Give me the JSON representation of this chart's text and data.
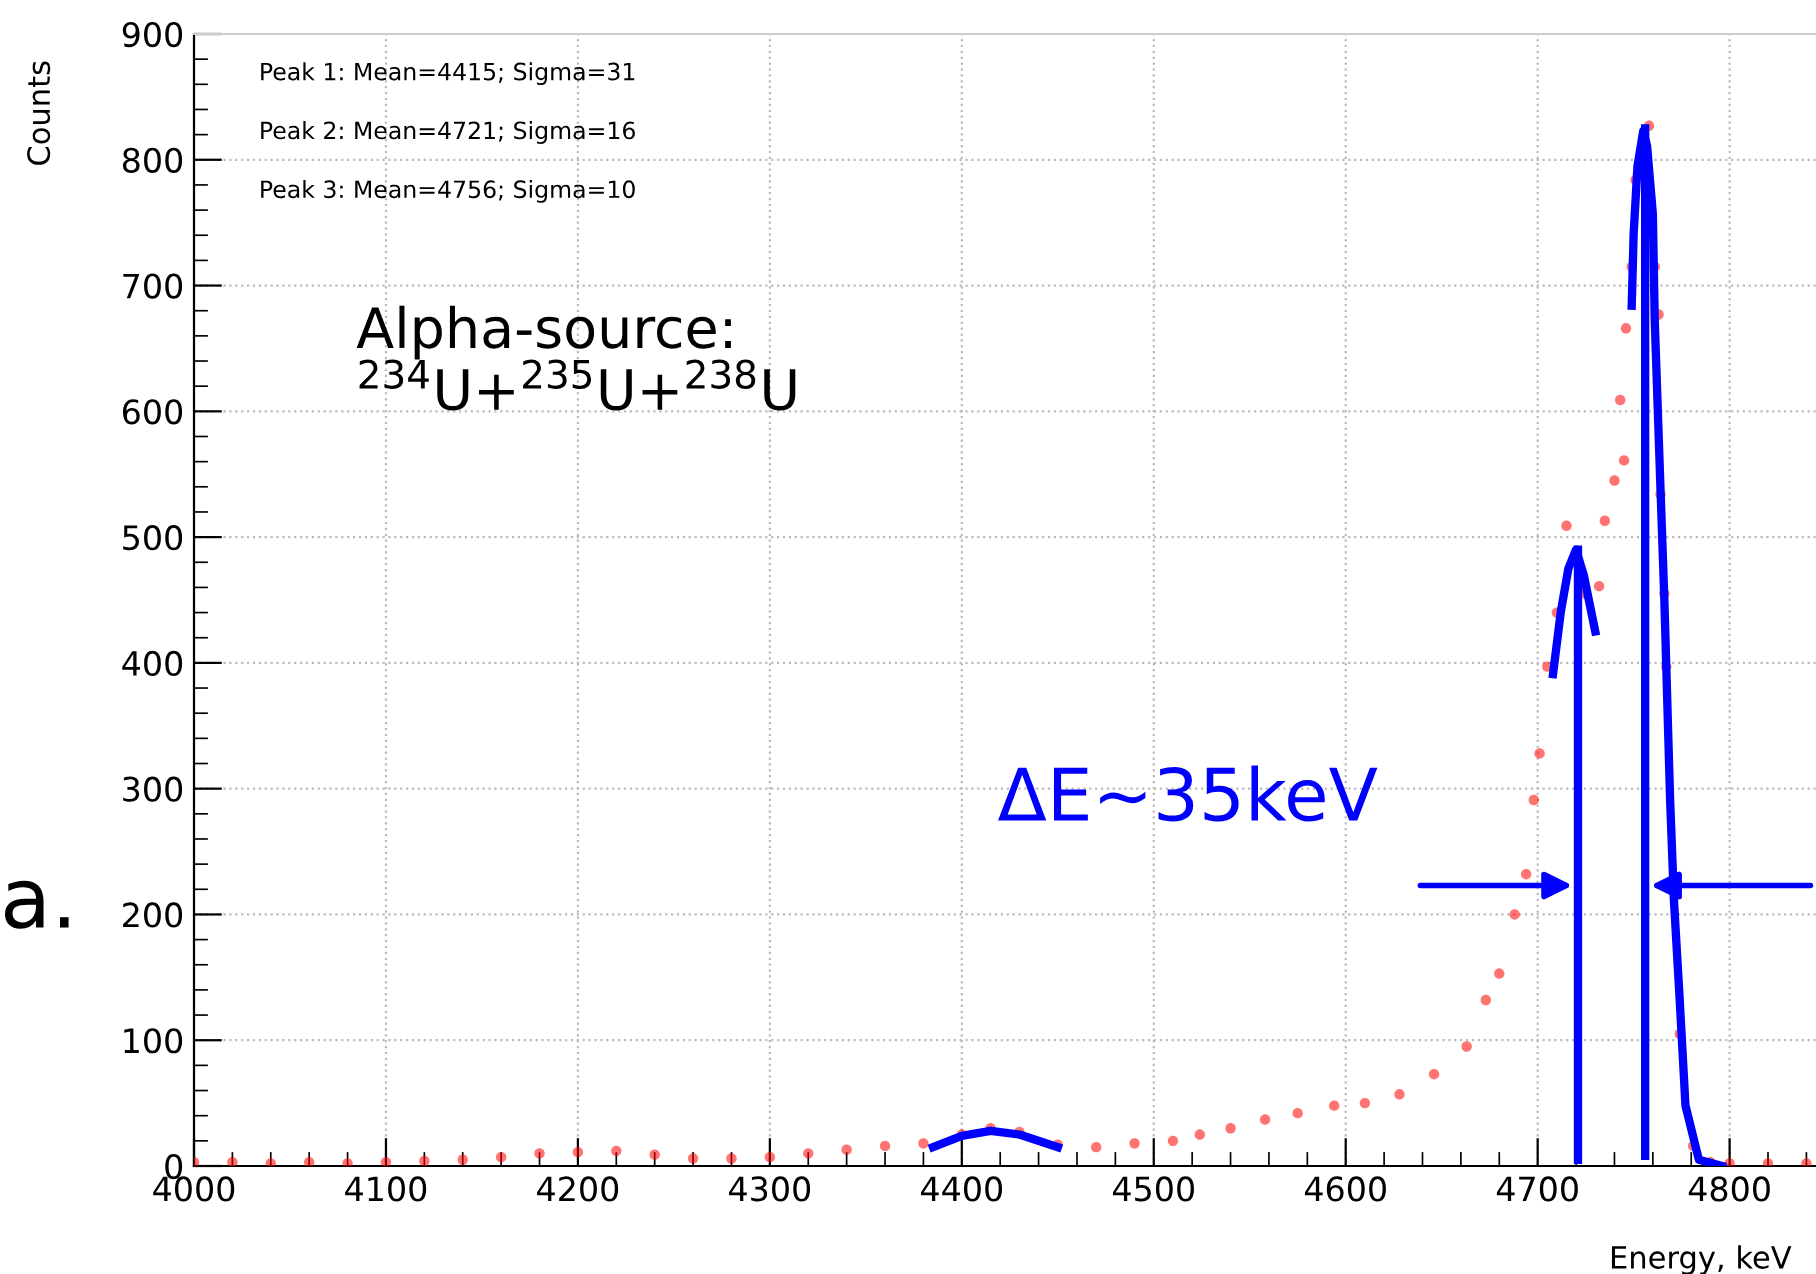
{
  "chart_data": {
    "type": "scatter",
    "xlabel": "Energy, keV",
    "ylabel": "Counts",
    "xlim": [
      4000,
      4845
    ],
    "ylim": [
      0,
      900
    ],
    "xticks": [
      4000,
      4100,
      4200,
      4300,
      4400,
      4500,
      4600,
      4700,
      4800
    ],
    "yticks": [
      0,
      100,
      200,
      300,
      400,
      500,
      600,
      700,
      800,
      900
    ],
    "grid": true,
    "legend": false,
    "series": [
      {
        "marker": "circle",
        "color": "#ff0000",
        "x": [
          4000,
          4020,
          4040,
          4060,
          4080,
          4100,
          4120,
          4140,
          4160,
          4180,
          4200,
          4220,
          4240,
          4260,
          4280,
          4300,
          4320,
          4340,
          4360,
          4380,
          4400,
          4415,
          4430,
          4450,
          4470,
          4490,
          4510,
          4524,
          4540,
          4558,
          4575,
          4594,
          4610,
          4628,
          4646,
          4663,
          4673,
          4680,
          4688,
          4694,
          4698,
          4701,
          4705,
          4710,
          4715,
          4725,
          4732,
          4735,
          4740,
          4743,
          4745,
          4746,
          4749,
          4751,
          4758,
          4761,
          4763,
          4764,
          4766,
          4767,
          4774,
          4781,
          4790,
          4800,
          4820,
          4840
        ],
        "values": [
          3,
          3,
          2,
          3,
          2,
          3,
          4,
          5,
          7,
          10,
          11,
          12,
          9,
          6,
          6,
          7,
          10,
          13,
          16,
          18,
          25,
          30,
          27,
          17,
          15,
          18,
          20,
          25,
          30,
          37,
          42,
          48,
          50,
          57,
          73,
          95,
          132,
          153,
          200,
          232,
          291,
          328,
          397,
          440,
          509,
          455,
          461,
          513,
          545,
          609,
          561,
          666,
          715,
          784,
          827,
          715,
          677,
          534,
          455,
          397,
          105,
          16,
          3,
          2,
          2,
          2
        ]
      },
      {
        "type": "line",
        "marker": "none",
        "color": "#0000ff",
        "x": [
          4385,
          4400,
          4415,
          4430,
          4450
        ],
        "values": [
          15,
          24,
          28,
          25,
          15
        ]
      },
      {
        "type": "line",
        "marker": "none",
        "color": "#0000ff",
        "x": [
          4708,
          4712,
          4716,
          4720,
          4724,
          4728,
          4730
        ],
        "values": [
          391,
          440,
          475,
          490,
          470,
          440,
          425
        ]
      },
      {
        "type": "line",
        "marker": "none",
        "color": "#0000ff",
        "x": [
          4749,
          4750,
          4752,
          4755,
          4757,
          4760,
          4761,
          4763,
          4766,
          4769,
          4771,
          4774,
          4777,
          4784,
          4796
        ],
        "values": [
          684,
          741,
          795,
          823,
          811,
          757,
          672,
          582,
          450,
          291,
          211,
          132,
          48,
          5,
          0
        ]
      },
      {
        "type": "line",
        "marker": "none",
        "color": "#0000ff",
        "x": [
          4721,
          4721
        ],
        "values": [
          5,
          490
        ]
      },
      {
        "type": "line",
        "marker": "none",
        "color": "#0000ff",
        "x": [
          4756,
          4756
        ],
        "values": [
          8,
          825
        ]
      }
    ],
    "annotations": [
      "Peak 1: Mean=4415; Sigma=31",
      "Peak 2: Mean=4721; Sigma=16",
      "Peak 3: Mean=4756; Sigma=10",
      "Alpha-source:\n$^{234}$U+$^{235}$U+$^{238}$U",
      {
        "text": "ΔE~35keV",
        "x": 4721,
        "y": 223
      },
      "a."
    ]
  }
}
